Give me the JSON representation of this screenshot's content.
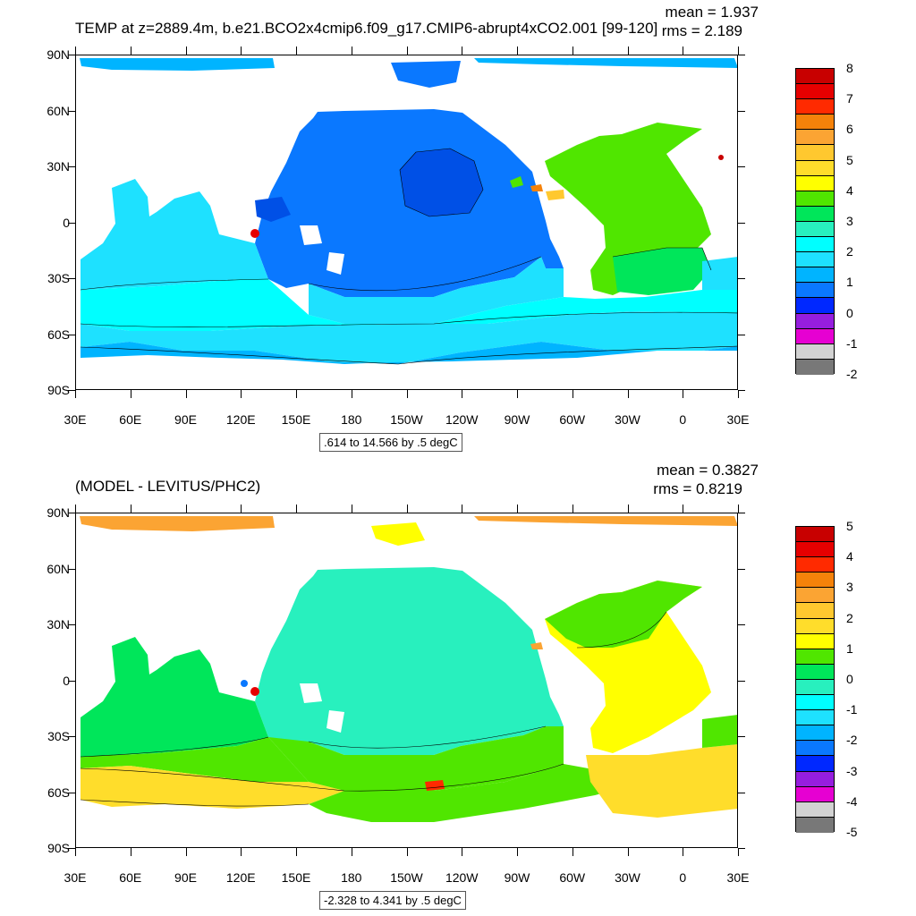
{
  "top": {
    "title": "TEMP at z=2889.4m, b.e21.BCO2x4cmip6.f09_g17.CMIP6-abrupt4xCO2.001 [99-120]",
    "mean": "mean = 1.937",
    "rms": "rms = 2.189",
    "range": ".614 to 14.566 by .5 degC",
    "legend_labels": [
      "8",
      "7",
      "6",
      "5",
      "4",
      "3",
      "2",
      "1",
      "0",
      "-1",
      "-2"
    ],
    "legend_colors": [
      "#c80000",
      "#e60000",
      "#ff2a00",
      "#f5820a",
      "#fba433",
      "#ffc82f",
      "#ffdd2b",
      "#ffff00",
      "#50e600",
      "#00e65a",
      "#28f0be",
      "#00ffff",
      "#1ee1ff",
      "#00b4ff",
      "#0a78ff",
      "#0028ff",
      "#961ede",
      "#e600d2",
      "#d2d2d2",
      "#787878"
    ]
  },
  "bottom": {
    "title": "(MODEL - LEVITUS/PHC2)",
    "mean": "mean = 0.3827",
    "rms": "rms = 0.8219",
    "range": "-2.328 to 4.341 by .5 degC",
    "legend_labels": [
      "5",
      "4",
      "3",
      "2",
      "1",
      "0",
      "-1",
      "-2",
      "-3",
      "-4",
      "-5"
    ],
    "legend_colors": [
      "#c80000",
      "#e60000",
      "#ff2a00",
      "#f5820a",
      "#fba433",
      "#ffc82f",
      "#ffdd2b",
      "#ffff00",
      "#50e600",
      "#00e65a",
      "#28f0be",
      "#00ffff",
      "#1ee1ff",
      "#00b4ff",
      "#0a78ff",
      "#0028ff",
      "#961ede",
      "#e600d2",
      "#d2d2d2",
      "#787878"
    ]
  },
  "map_colors": {
    "top_arctic": "#00b4ff",
    "top_pacific_north": "#0a78ff",
    "top_pacific_core": "#0050e6",
    "top_south_band": "#1ee1ff",
    "top_southern": "#00ffff",
    "top_atlantic": "#50e600",
    "top_atlantic_mid": "#00e65a",
    "bottom_arctic": "#fba433",
    "bottom_pacific": "#28f0be",
    "bottom_indian": "#00e65a",
    "bottom_southern": "#ffdd2b",
    "bottom_atlantic": "#ffff00",
    "bottom_south_green": "#50e600"
  },
  "axes": {
    "lat_labels": [
      "90N",
      "60N",
      "30N",
      "0",
      "30S",
      "60S",
      "90S"
    ],
    "lon_labels": [
      "30E",
      "60E",
      "90E",
      "120E",
      "150E",
      "180",
      "150W",
      "120W",
      "90W",
      "60W",
      "30W",
      "0",
      "30E"
    ]
  }
}
